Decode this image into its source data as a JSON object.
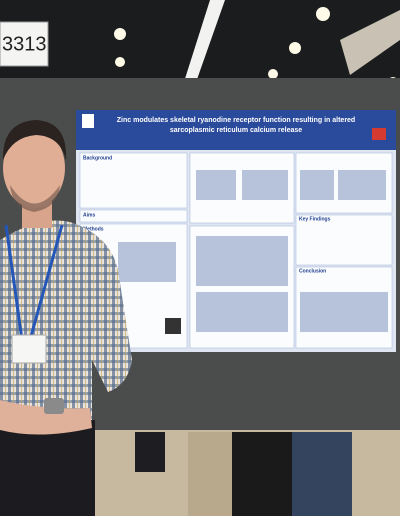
{
  "booth_sign": "3313",
  "poster": {
    "title_lines": [
      "Zinc modulates skeletal ryanodine receptor function resulting in altered",
      "sarcoplasmic reticulum calcium release"
    ],
    "sections": [
      "Background",
      "Aims",
      "Methods",
      "Key Findings",
      "Conclusion"
    ]
  }
}
